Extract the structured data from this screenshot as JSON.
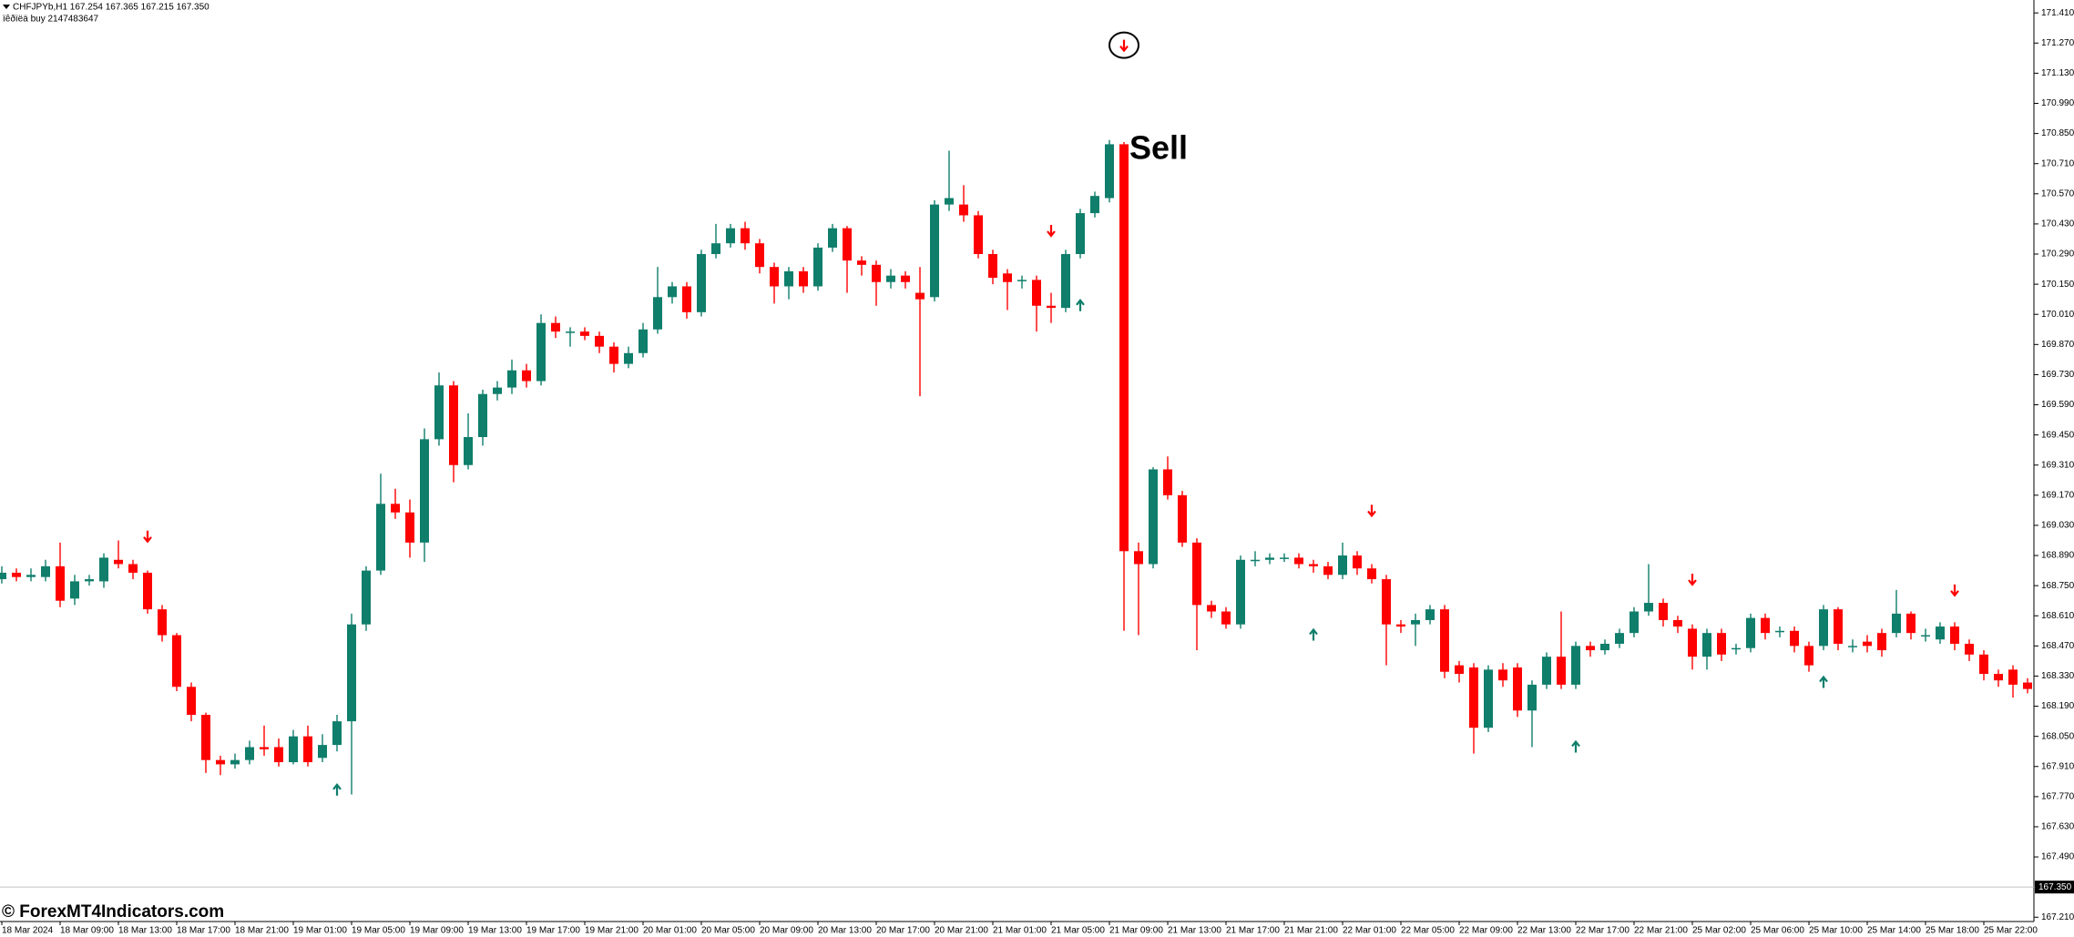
{
  "chart_data": {
    "type": "candlestick",
    "header": "CHFJPYb,H1  167.254 167.365 167.215 167.350",
    "subheader": "ïêðïëä buy 2147483647",
    "watermark": "© ForexMT4Indicators.com",
    "annotation": "Sell",
    "up_color": "#0f7e6b",
    "down_color": "#ff0000",
    "categories": [
      "18 Mar 2024",
      null,
      null,
      null,
      "18 Mar 09:00",
      null,
      null,
      null,
      "18 Mar 13:00",
      null,
      null,
      null,
      "18 Mar 17:00",
      null,
      null,
      null,
      "18 Mar 21:00",
      null,
      null,
      null,
      "19 Mar 01:00",
      null,
      null,
      null,
      "19 Mar 05:00",
      null,
      null,
      null,
      "19 Mar 09:00",
      null,
      null,
      null,
      "19 Mar 13:00",
      null,
      null,
      null,
      "19 Mar 17:00",
      null,
      null,
      null,
      "19 Mar 21:00",
      null,
      null,
      null,
      "20 Mar 01:00",
      null,
      null,
      null,
      "20 Mar 05:00",
      null,
      null,
      null,
      "20 Mar 09:00",
      null,
      null,
      null,
      "20 Mar 13:00",
      null,
      null,
      null,
      "20 Mar 17:00",
      null,
      null,
      null,
      "20 Mar 21:00",
      null,
      null,
      null,
      "21 Mar 01:00",
      null,
      null,
      null,
      "21 Mar 05:00",
      null,
      null,
      null,
      "21 Mar 09:00",
      null,
      null,
      null,
      "21 Mar 13:00",
      null,
      null,
      null,
      "21 Mar 17:00",
      null,
      null,
      null,
      "21 Mar 21:00",
      null,
      null,
      null,
      "22 Mar 01:00",
      null,
      null,
      null,
      "22 Mar 05:00",
      null,
      null,
      null,
      "22 Mar 09:00",
      null,
      null,
      null,
      "22 Mar 13:00",
      null,
      null,
      null,
      "22 Mar 17:00",
      null,
      null,
      null,
      "22 Mar 21:00",
      null,
      null,
      null,
      "25 Mar 02:00",
      null,
      null,
      null,
      "25 Mar 06:00",
      null,
      null,
      null,
      "25 Mar 10:00",
      null,
      null,
      null,
      "25 Mar 14:00",
      null,
      null,
      null,
      "25 Mar 18:00",
      null,
      null,
      null,
      "25 Mar 22:00",
      null,
      null,
      null
    ],
    "open": [
      168.78,
      168.81,
      168.79,
      168.79,
      168.84,
      168.69,
      168.77,
      168.77,
      168.87,
      168.85,
      168.81,
      168.64,
      168.52,
      168.28,
      168.15,
      167.94,
      167.92,
      167.94,
      168.0,
      168.0,
      167.93,
      168.05,
      167.95,
      168.01,
      168.12,
      168.57,
      168.82,
      169.13,
      169.09,
      168.95,
      169.43,
      169.68,
      169.31,
      169.44,
      169.64,
      169.67,
      169.75,
      169.7,
      169.97,
      169.93,
      169.93,
      169.91,
      169.86,
      169.78,
      169.83,
      169.94,
      170.09,
      170.14,
      170.02,
      170.29,
      170.34,
      170.41,
      170.34,
      170.23,
      170.14,
      170.21,
      170.14,
      170.32,
      170.41,
      170.26,
      170.24,
      170.16,
      170.19,
      170.11,
      170.09,
      170.52,
      170.52,
      170.47,
      170.29,
      170.2,
      170.17,
      170.17,
      170.05,
      170.04,
      170.29,
      170.48,
      170.55,
      170.8,
      168.91,
      168.85,
      169.29,
      169.17,
      168.95,
      168.66,
      168.63,
      168.57,
      168.87,
      168.87,
      168.88,
      168.88,
      168.85,
      168.84,
      168.8,
      168.89,
      168.83,
      168.78,
      168.57,
      168.57,
      168.59,
      168.64,
      168.38,
      168.37,
      168.09,
      168.36,
      168.37,
      168.17,
      168.29,
      168.42,
      168.29,
      168.47,
      168.45,
      168.48,
      168.53,
      168.63,
      168.67,
      168.59,
      168.55,
      168.42,
      168.53,
      168.46,
      168.46,
      168.6,
      168.54,
      168.54,
      168.47,
      168.47,
      168.64,
      168.47,
      168.49,
      168.53,
      168.53,
      168.62,
      168.52,
      168.5,
      168.56,
      168.48,
      168.43,
      168.34,
      168.36,
      168.3
    ],
    "high": [
      168.84,
      168.83,
      168.83,
      168.87,
      168.95,
      168.8,
      168.8,
      168.9,
      168.96,
      168.87,
      168.82,
      168.66,
      168.53,
      168.3,
      168.16,
      167.96,
      167.97,
      168.03,
      168.1,
      168.04,
      168.08,
      168.1,
      168.06,
      168.15,
      168.62,
      168.84,
      169.27,
      169.2,
      169.15,
      169.48,
      169.74,
      169.7,
      169.55,
      169.66,
      169.7,
      169.8,
      169.78,
      170.01,
      170.0,
      169.95,
      169.95,
      169.93,
      169.88,
      169.86,
      169.97,
      170.23,
      170.16,
      170.16,
      170.31,
      170.43,
      170.43,
      170.44,
      170.36,
      170.25,
      170.23,
      170.23,
      170.34,
      170.43,
      170.42,
      170.28,
      170.26,
      170.22,
      170.21,
      170.23,
      170.54,
      170.77,
      170.61,
      170.49,
      170.31,
      170.22,
      170.19,
      170.19,
      170.11,
      170.31,
      170.5,
      170.58,
      170.82,
      170.81,
      168.95,
      169.3,
      169.35,
      169.19,
      168.97,
      168.68,
      168.65,
      168.89,
      168.91,
      168.9,
      168.9,
      168.9,
      168.87,
      168.86,
      168.95,
      168.91,
      168.85,
      168.8,
      168.59,
      168.62,
      168.66,
      168.66,
      168.4,
      168.39,
      168.38,
      168.39,
      168.39,
      168.31,
      168.44,
      168.63,
      168.49,
      168.49,
      168.5,
      168.55,
      168.65,
      168.85,
      168.69,
      168.61,
      168.57,
      168.55,
      168.55,
      168.48,
      168.62,
      168.62,
      168.56,
      168.56,
      168.49,
      168.66,
      168.65,
      168.5,
      168.52,
      168.55,
      168.73,
      168.63,
      168.55,
      168.58,
      168.58,
      168.5,
      168.45,
      168.36,
      168.38,
      168.32
    ],
    "low": [
      168.76,
      168.77,
      168.77,
      168.77,
      168.65,
      168.66,
      168.75,
      168.74,
      168.83,
      168.78,
      168.62,
      168.49,
      168.26,
      168.12,
      167.88,
      167.87,
      167.9,
      167.92,
      167.96,
      167.91,
      167.92,
      167.91,
      167.93,
      167.98,
      167.78,
      168.54,
      168.8,
      169.06,
      168.88,
      168.86,
      169.4,
      169.23,
      169.29,
      169.4,
      169.61,
      169.64,
      169.67,
      169.68,
      169.9,
      169.86,
      169.89,
      169.83,
      169.74,
      169.76,
      169.81,
      169.92,
      170.06,
      169.99,
      170.0,
      170.27,
      170.32,
      170.31,
      170.2,
      170.06,
      170.08,
      170.11,
      170.12,
      170.3,
      170.11,
      170.19,
      170.05,
      170.13,
      170.13,
      169.63,
      170.07,
      170.49,
      170.44,
      170.27,
      170.15,
      170.03,
      170.13,
      169.93,
      169.97,
      170.02,
      170.27,
      170.46,
      170.53,
      168.54,
      168.52,
      168.83,
      169.15,
      168.93,
      168.45,
      168.6,
      168.55,
      168.55,
      168.84,
      168.85,
      168.86,
      168.83,
      168.81,
      168.78,
      168.78,
      168.8,
      168.76,
      168.38,
      168.53,
      168.47,
      168.57,
      168.32,
      168.3,
      167.97,
      168.07,
      168.28,
      168.14,
      168.0,
      168.27,
      168.27,
      168.27,
      168.42,
      168.43,
      168.46,
      168.51,
      168.61,
      168.56,
      168.53,
      168.36,
      168.36,
      168.4,
      168.43,
      168.44,
      168.5,
      168.51,
      168.44,
      168.35,
      168.45,
      168.45,
      168.44,
      168.44,
      168.42,
      168.51,
      168.5,
      168.49,
      168.48,
      168.45,
      168.4,
      168.31,
      168.28,
      168.23,
      168.25
    ],
    "close": [
      168.81,
      168.79,
      168.8,
      168.84,
      168.68,
      168.77,
      168.78,
      168.88,
      168.85,
      168.81,
      168.64,
      168.52,
      168.28,
      168.15,
      167.94,
      167.92,
      167.94,
      168.0,
      167.99,
      167.93,
      168.05,
      167.93,
      168.01,
      168.12,
      168.57,
      168.82,
      169.13,
      169.09,
      168.95,
      169.43,
      169.68,
      169.31,
      169.44,
      169.64,
      169.67,
      169.75,
      169.7,
      169.97,
      169.93,
      169.93,
      169.91,
      169.86,
      169.78,
      169.83,
      169.94,
      170.09,
      170.14,
      170.02,
      170.29,
      170.34,
      170.41,
      170.34,
      170.23,
      170.14,
      170.21,
      170.14,
      170.32,
      170.41,
      170.26,
      170.24,
      170.16,
      170.19,
      170.16,
      170.08,
      170.52,
      170.55,
      170.47,
      170.29,
      170.18,
      170.16,
      170.17,
      170.05,
      170.04,
      170.29,
      170.48,
      170.56,
      170.8,
      168.91,
      168.85,
      169.29,
      169.17,
      168.95,
      168.66,
      168.63,
      168.57,
      168.87,
      168.87,
      168.88,
      168.88,
      168.85,
      168.84,
      168.8,
      168.89,
      168.83,
      168.78,
      168.57,
      168.56,
      168.59,
      168.64,
      168.35,
      168.34,
      168.09,
      168.36,
      168.31,
      168.17,
      168.29,
      168.42,
      168.29,
      168.47,
      168.45,
      168.48,
      168.53,
      168.63,
      168.67,
      168.59,
      168.56,
      168.42,
      168.53,
      168.43,
      168.46,
      168.6,
      168.53,
      168.54,
      168.47,
      168.38,
      168.64,
      168.48,
      168.47,
      168.47,
      168.45,
      168.62,
      168.53,
      168.52,
      168.56,
      168.48,
      168.43,
      168.34,
      168.31,
      168.29,
      168.27
    ],
    "signals_down": [
      {
        "bar": 10,
        "value": 168.98
      },
      {
        "bar": 72,
        "value": 170.4
      },
      {
        "bar": 94,
        "value": 169.1
      },
      {
        "bar": 116,
        "value": 168.78
      },
      {
        "bar": 134,
        "value": 168.73
      }
    ],
    "signal_circled": {
      "bar": 77,
      "value": 171.26
    },
    "signals_up": [
      {
        "bar": 23,
        "value": 167.8
      },
      {
        "bar": 74,
        "value": 170.05
      },
      {
        "bar": 90,
        "value": 168.52
      },
      {
        "bar": 108,
        "value": 168.0
      },
      {
        "bar": 125,
        "value": 168.3
      }
    ],
    "current_price": {
      "value": 167.35,
      "label": "167.350"
    },
    "ylim": [
      167.19,
      171.47
    ],
    "yticks": [
      {
        "value": 171.41,
        "label": "171.410"
      },
      {
        "value": 171.27,
        "label": "171.270"
      },
      {
        "value": 171.13,
        "label": "171.130"
      },
      {
        "value": 170.99,
        "label": "170.990"
      },
      {
        "value": 170.85,
        "label": "170.850"
      },
      {
        "value": 170.71,
        "label": "170.710"
      },
      {
        "value": 170.57,
        "label": "170.570"
      },
      {
        "value": 170.43,
        "label": "170.430"
      },
      {
        "value": 170.29,
        "label": "170.290"
      },
      {
        "value": 170.15,
        "label": "170.150"
      },
      {
        "value": 170.01,
        "label": "170.010"
      },
      {
        "value": 169.87,
        "label": "169.870"
      },
      {
        "value": 169.73,
        "label": "169.730"
      },
      {
        "value": 169.59,
        "label": "169.590"
      },
      {
        "value": 169.45,
        "label": "169.450"
      },
      {
        "value": 169.31,
        "label": "169.310"
      },
      {
        "value": 169.17,
        "label": "169.170"
      },
      {
        "value": 169.03,
        "label": "169.030"
      },
      {
        "value": 168.89,
        "label": "168.890"
      },
      {
        "value": 168.75,
        "label": "168.750"
      },
      {
        "value": 168.61,
        "label": "168.610"
      },
      {
        "value": 168.47,
        "label": "168.470"
      },
      {
        "value": 168.33,
        "label": "168.330"
      },
      {
        "value": 168.19,
        "label": "168.190"
      },
      {
        "value": 168.05,
        "label": "168.050"
      },
      {
        "value": 167.91,
        "label": "167.910"
      },
      {
        "value": 167.77,
        "label": "167.770"
      },
      {
        "value": 167.63,
        "label": "167.630"
      },
      {
        "value": 167.49,
        "label": "167.490"
      },
      {
        "value": 167.21,
        "label": "167.210"
      }
    ]
  }
}
